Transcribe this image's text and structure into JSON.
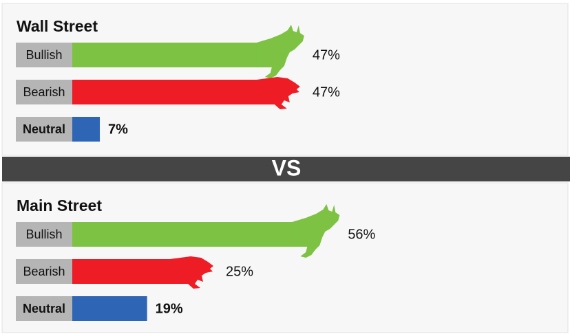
{
  "chart_data": [
    {
      "type": "bar",
      "title": "Wall Street",
      "categories": [
        "Bullish",
        "Bearish",
        "Neutral"
      ],
      "values": [
        47,
        47,
        7
      ],
      "value_labels": [
        "47%",
        "47%",
        "7%"
      ],
      "colors": [
        "#7dc242",
        "#ee1c25",
        "#2e66b5"
      ]
    },
    {
      "type": "bar",
      "title": "Main Street",
      "categories": [
        "Bullish",
        "Bearish",
        "Neutral"
      ],
      "values": [
        56,
        25,
        19
      ],
      "value_labels": [
        "56%",
        "25%",
        "19%"
      ],
      "colors": [
        "#7dc242",
        "#ee1c25",
        "#2e66b5"
      ]
    }
  ],
  "separator": "VS"
}
